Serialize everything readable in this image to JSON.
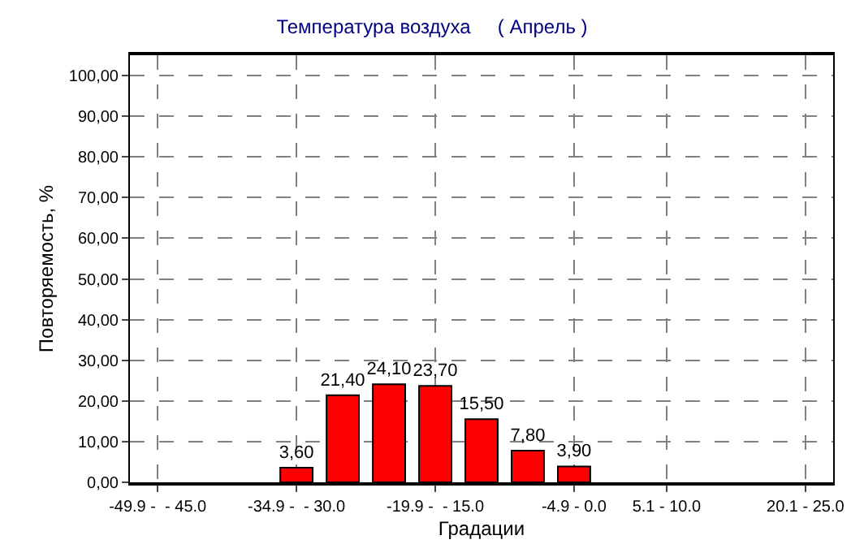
{
  "chart_data": {
    "type": "bar",
    "title": "Температура воздуха     ( Апрель )",
    "xlabel": "Градации",
    "ylabel": "Повторяемость, %",
    "categories": [
      "-49.9 -  - 45.0",
      null,
      null,
      "-34.9 -  - 30.0",
      null,
      null,
      "-19.9 -  - 15.0",
      null,
      null,
      "-4.9 - 0.0",
      null,
      "5.1 - 10.0",
      null,
      null,
      "20.1 - 25.0"
    ],
    "values": [
      null,
      null,
      null,
      3.6,
      21.4,
      24.1,
      23.7,
      15.5,
      7.8,
      3.9,
      null,
      null,
      null,
      null,
      null
    ],
    "value_labels": [
      null,
      null,
      null,
      "3,60",
      "21,40",
      "24,10",
      "23,70",
      "15,50",
      "7,80",
      "3,90",
      null,
      null,
      null,
      null,
      null
    ],
    "color": "#ff0000",
    "ylim": [
      0,
      105
    ],
    "yticks": [
      {
        "value": 0,
        "label": "0,00"
      },
      {
        "value": 10,
        "label": "10,00"
      },
      {
        "value": 20,
        "label": "20,00"
      },
      {
        "value": 30,
        "label": "30,00"
      },
      {
        "value": 40,
        "label": "40,00"
      },
      {
        "value": 50,
        "label": "50,00"
      },
      {
        "value": 60,
        "label": "60,00"
      },
      {
        "value": 70,
        "label": "70,00"
      },
      {
        "value": 80,
        "label": "80,00"
      },
      {
        "value": 90,
        "label": "90,00"
      },
      {
        "value": 100,
        "label": "100,00"
      }
    ],
    "grid": true
  }
}
